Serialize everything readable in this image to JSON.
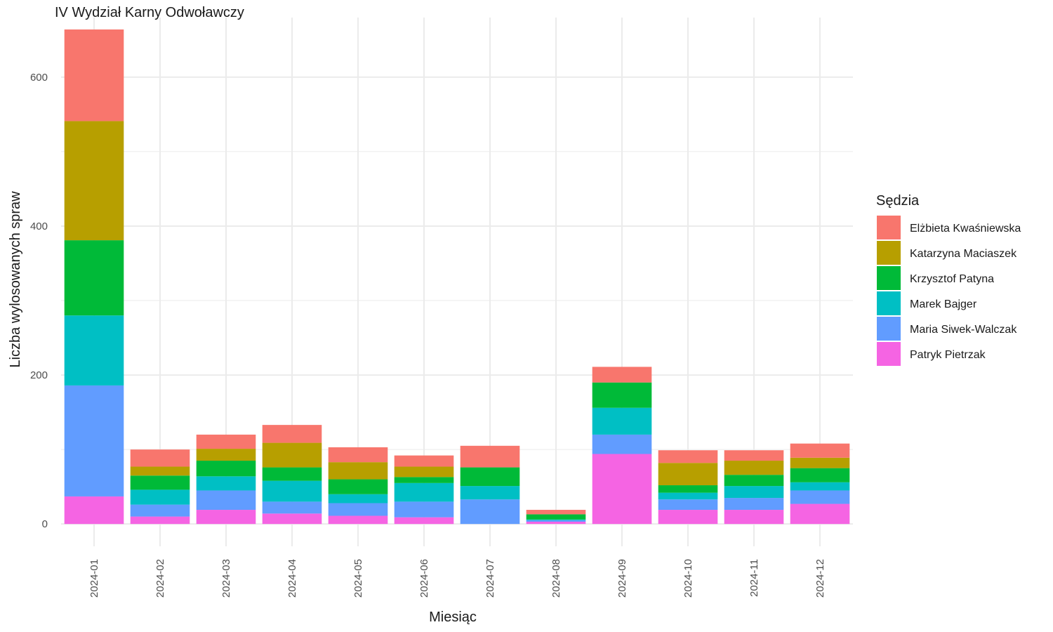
{
  "chart_data": {
    "type": "bar",
    "stacked": true,
    "title": "IV Wydział Karny Odwoławczy",
    "xlabel": "Miesiąc",
    "ylabel": "Liczba wylosowanych spraw",
    "ylim": [
      -30,
      680
    ],
    "yticks": [
      0,
      200,
      400,
      600
    ],
    "grid": true,
    "legend_title": "Sędzia",
    "legend_position": "right",
    "categories": [
      "2024-01",
      "2024-02",
      "2024-03",
      "2024-04",
      "2024-05",
      "2024-06",
      "2024-07",
      "2024-08",
      "2024-09",
      "2024-10",
      "2024-11",
      "2024-12"
    ],
    "series": [
      {
        "name": "Patryk Pietrzak",
        "color": "#F564E3",
        "values": [
          37,
          10,
          19,
          14,
          11,
          9,
          0,
          3,
          94,
          19,
          19,
          27
        ]
      },
      {
        "name": "Maria Siwek-Walczak",
        "color": "#619CFF",
        "values": [
          149,
          16,
          26,
          16,
          17,
          21,
          33,
          2,
          26,
          14,
          16,
          18
        ]
      },
      {
        "name": "Marek Bajger",
        "color": "#00BFC4",
        "values": [
          94,
          20,
          19,
          28,
          12,
          25,
          18,
          1,
          36,
          9,
          16,
          11
        ]
      },
      {
        "name": "Krzysztof Patyna",
        "color": "#00BA38",
        "values": [
          101,
          19,
          21,
          18,
          20,
          8,
          25,
          7,
          34,
          10,
          15,
          19
        ]
      },
      {
        "name": "Katarzyna Maciaszek",
        "color": "#B79F00",
        "values": [
          160,
          12,
          16,
          33,
          23,
          14,
          0,
          0,
          0,
          30,
          19,
          14
        ]
      },
      {
        "name": "Elżbieta Kwaśniewska",
        "color": "#F8766D",
        "values": [
          123,
          23,
          19,
          24,
          20,
          15,
          29,
          6,
          21,
          17,
          14,
          19
        ]
      }
    ],
    "legend_order": [
      "Elżbieta Kwaśniewska",
      "Katarzyna Maciaszek",
      "Krzysztof Patyna",
      "Marek Bajger",
      "Maria Siwek-Walczak",
      "Patryk Pietrzak"
    ]
  }
}
